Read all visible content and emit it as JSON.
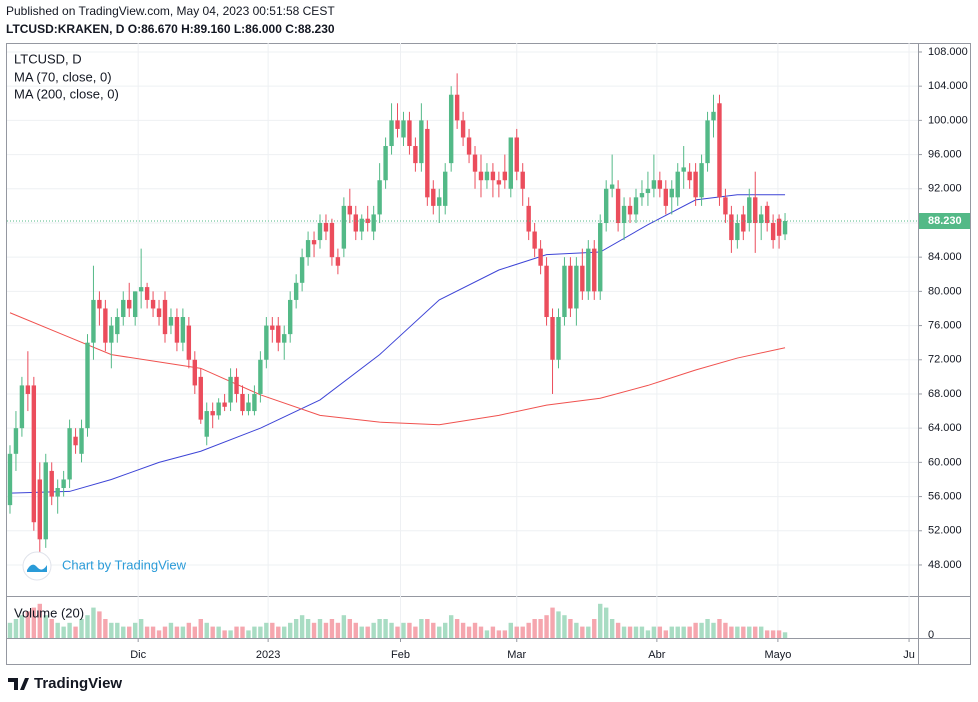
{
  "published": "Published on TradingView.com, May 04, 2023 00:51:58 CEST",
  "header": "LTCUSD:KRAKEN, D O:86.670 H:89.160 L:86.000 C:88.230",
  "watermark": "Chart by TradingView",
  "footer": "TradingView",
  "chart_data": {
    "type": "candlestick",
    "title": "LTCUSD, D",
    "up_color": "#53b987",
    "down_color": "#eb4d5c",
    "grid": true,
    "xlim": [
      -0.5,
      152.3
    ],
    "xticks": [
      {
        "value": 21.5,
        "label": "Dic"
      },
      {
        "value": 43.3,
        "label": "2023"
      },
      {
        "value": 65.5,
        "label": "Feb"
      },
      {
        "value": 85,
        "label": "Mar"
      },
      {
        "value": 108.5,
        "label": "Abr"
      },
      {
        "value": 128.8,
        "label": "Mayo"
      },
      {
        "value": 150.8,
        "label": "Ju"
      }
    ],
    "ylim": [
      44.37,
      109.05
    ],
    "yticks": [
      {
        "value": 48,
        "label": "48.000"
      },
      {
        "value": 52,
        "label": "52.000"
      },
      {
        "value": 56,
        "label": "56.000"
      },
      {
        "value": 60,
        "label": "60.000"
      },
      {
        "value": 64,
        "label": "64.000"
      },
      {
        "value": 68,
        "label": "68.000"
      },
      {
        "value": 72,
        "label": "72.000"
      },
      {
        "value": 76,
        "label": "76.000"
      },
      {
        "value": 80,
        "label": "80.000"
      },
      {
        "value": 84,
        "label": "84.000"
      },
      {
        "value": 88,
        "label": "88.000"
      },
      {
        "value": 92,
        "label": "92.000"
      },
      {
        "value": 96,
        "label": "96.000"
      },
      {
        "value": 100,
        "label": "100.000"
      },
      {
        "value": 104,
        "label": "104.000"
      },
      {
        "value": 108,
        "label": "108.000"
      }
    ],
    "last_price": {
      "value": 88.23,
      "label": "88.230"
    },
    "open": [
      55,
      61,
      64,
      69,
      69,
      58,
      51,
      59,
      56,
      57,
      58,
      63,
      61,
      64,
      74,
      79,
      78,
      74,
      75,
      77,
      79,
      77,
      80,
      80.5,
      79,
      78,
      79,
      76,
      77,
      74,
      76,
      72,
      70,
      63,
      66,
      65.5,
      67,
      67,
      70,
      68,
      66,
      66,
      68,
      72,
      76,
      76,
      74,
      75,
      79,
      81,
      84,
      86,
      86,
      88,
      88,
      84,
      85,
      90,
      89,
      87,
      88.5,
      87,
      89,
      93,
      97,
      100,
      98,
      100,
      97,
      95,
      99,
      92,
      90,
      90,
      95,
      103,
      100,
      98,
      96,
      94,
      93,
      94,
      93,
      94,
      92,
      98,
      94,
      90,
      87,
      85,
      83,
      77,
      72,
      77,
      83,
      78,
      83,
      80,
      85,
      80,
      88,
      92,
      92,
      88,
      90,
      89,
      91,
      91.5,
      92,
      93,
      92,
      91,
      91,
      94,
      94,
      94,
      91,
      95,
      100,
      102,
      91,
      89,
      86,
      89,
      88,
      91,
      88,
      90,
      88,
      88.5,
      86.67
    ],
    "high": [
      62,
      66,
      70,
      73,
      70,
      60,
      61,
      60,
      58,
      59,
      65,
      64,
      65,
      75,
      83,
      80,
      79,
      77,
      78,
      80,
      81,
      80,
      85,
      81,
      80,
      79,
      80,
      78,
      78,
      78,
      77,
      73,
      71,
      67,
      67,
      67.5,
      68,
      71,
      71,
      69,
      68,
      69,
      73,
      77,
      77,
      77,
      76,
      80,
      82,
      85,
      87,
      87,
      89,
      89,
      88.5,
      85,
      91,
      92,
      90,
      89,
      90,
      90,
      95,
      98,
      102,
      102,
      101,
      101,
      98,
      102,
      100,
      93,
      92,
      95,
      104,
      105.5,
      101,
      99,
      97,
      96,
      95,
      95,
      94,
      96,
      98,
      99,
      95,
      91,
      88,
      86,
      84,
      78,
      78,
      84,
      84,
      84,
      85,
      86,
      86,
      89,
      93,
      96,
      93,
      91,
      91,
      92,
      93,
      94,
      96,
      94,
      93,
      93,
      95,
      97,
      95,
      95,
      96,
      101,
      103,
      103,
      92,
      90,
      89,
      90,
      92,
      94,
      90,
      90.5,
      89,
      89,
      89.16
    ],
    "low": [
      54,
      59,
      63,
      66,
      52,
      49.5,
      50,
      55,
      54,
      56,
      57,
      61,
      60,
      63,
      72,
      76,
      73,
      71,
      74,
      76,
      77,
      76,
      78,
      78,
      77,
      76,
      74,
      75,
      73,
      73,
      71,
      68,
      64.5,
      62,
      64,
      65,
      66,
      66,
      67,
      65.5,
      65.5,
      65.5,
      67,
      71,
      74,
      73,
      72,
      74,
      78,
      80,
      83,
      84,
      85,
      86,
      83,
      82,
      84,
      88,
      86,
      86,
      87,
      86,
      88,
      92,
      96,
      98,
      97,
      96,
      94,
      94,
      90,
      89,
      88,
      89,
      94,
      99,
      97,
      95,
      92,
      91,
      92,
      91,
      91,
      92,
      91,
      93,
      90,
      86,
      84,
      82,
      76,
      68,
      71,
      76,
      77,
      76,
      79,
      79,
      79,
      79,
      87,
      91,
      87,
      86,
      88,
      88,
      90,
      90,
      91,
      91,
      89,
      89,
      90,
      92,
      92,
      90,
      90,
      94,
      98,
      90,
      88,
      84.5,
      85,
      86,
      87,
      84.5,
      86,
      87,
      85,
      85,
      86
    ],
    "close": [
      61,
      64,
      69,
      68,
      53,
      51,
      60,
      56,
      57,
      58,
      64,
      62,
      64,
      74,
      79,
      78,
      74,
      76,
      77,
      79,
      78,
      80,
      80.5,
      79,
      78,
      77,
      75,
      77,
      74,
      77,
      72,
      69,
      65,
      66,
      65.5,
      67,
      66.5,
      70,
      68,
      66,
      67,
      68,
      72,
      76,
      75.5,
      74,
      75,
      79,
      81,
      84,
      86,
      85.5,
      88,
      87,
      84,
      83,
      90,
      89,
      87,
      88.5,
      88,
      89,
      93,
      97,
      100,
      99,
      100,
      97,
      95,
      100,
      91,
      90,
      91,
      94,
      103,
      100,
      98,
      96,
      94,
      93,
      94,
      93,
      92.5,
      93,
      98,
      94,
      92,
      87,
      85,
      83,
      77,
      72,
      77,
      83,
      78,
      83,
      80,
      85,
      80,
      88,
      92,
      92.5,
      88,
      90,
      89,
      91,
      91.5,
      92,
      93,
      92,
      90,
      92,
      94,
      94.5,
      93,
      91,
      95,
      100,
      101,
      91,
      89,
      86,
      88,
      87,
      91,
      88,
      89,
      88,
      86,
      86.5,
      88.23
    ],
    "series": [
      {
        "name": "MA (70, close, 0)",
        "color": "#3d44d6",
        "x": [
          0,
          10,
          17,
          25,
          32,
          42,
          52,
          62,
          72,
          82,
          90,
          99,
          107,
          115,
          122,
          130
        ],
        "values": [
          56.4,
          56.6,
          58,
          60,
          61.3,
          64,
          67.3,
          72.6,
          79,
          82.5,
          84.3,
          84.6,
          87.8,
          90.7,
          91.3,
          91.3
        ]
      },
      {
        "name": "MA (200, close, 0)",
        "color": "#f0524f",
        "x": [
          0,
          9,
          17,
          32,
          42,
          52,
          62,
          72,
          82,
          90,
          99,
          107,
          115,
          122,
          130
        ],
        "values": [
          77.5,
          74.9,
          72.6,
          71,
          67.9,
          65.5,
          64.7,
          64.4,
          65.5,
          66.7,
          67.5,
          69,
          70.8,
          72.2,
          73.4
        ]
      }
    ],
    "volume": {
      "name": "Volume (20)",
      "ylim": [
        0,
        10
      ],
      "yticks": [
        0
      ],
      "up_color": "#a8dcc3",
      "down_color": "#f5a6ae",
      "values": [
        4,
        5,
        6,
        7,
        8,
        9,
        6,
        5,
        4,
        3,
        4,
        3,
        5,
        6,
        8,
        7,
        5,
        4,
        4,
        3,
        3,
        4,
        5,
        3,
        3,
        2,
        3,
        4,
        3,
        3,
        4,
        3,
        5,
        4,
        3,
        3,
        2,
        2,
        3,
        3,
        2,
        3,
        3,
        4,
        4,
        3,
        3,
        4,
        5,
        6,
        5,
        4,
        5,
        4,
        5,
        4,
        6,
        5,
        4,
        3,
        3,
        4,
        5,
        5,
        4,
        3,
        4,
        4,
        3,
        5,
        5,
        4,
        3,
        4,
        6,
        5,
        4,
        3,
        4,
        3,
        2,
        3,
        2,
        2,
        4,
        3,
        3,
        4,
        5,
        5,
        6,
        8,
        7,
        6,
        5,
        4,
        3,
        3,
        5,
        9,
        8,
        5,
        4,
        3,
        3,
        3,
        3,
        2,
        3,
        3,
        2,
        3,
        3,
        3,
        3,
        4,
        4,
        5,
        4,
        5,
        4,
        3,
        3,
        3,
        3,
        3,
        3,
        2,
        2,
        2,
        1.5
      ]
    }
  }
}
